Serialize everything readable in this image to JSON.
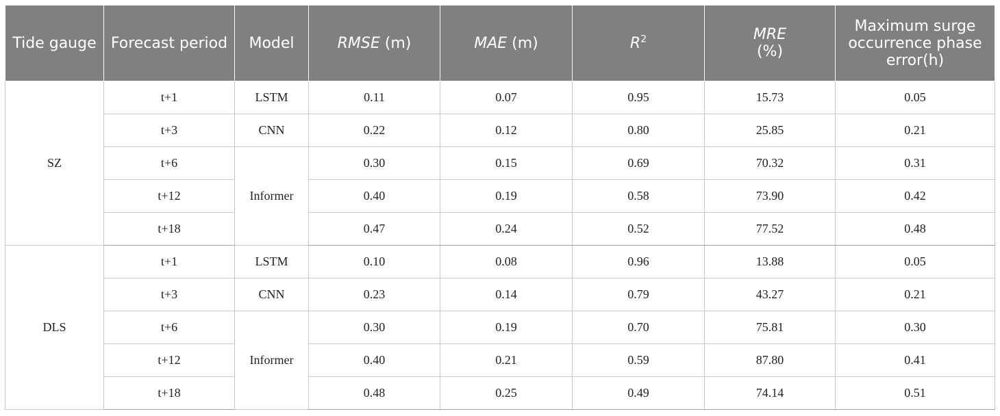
{
  "headers": {
    "tide_gauge": "Tide gauge",
    "forecast_period": "Forecast period",
    "model": "Model",
    "rmse_var": "RMSE",
    "rmse_unit": " (m)",
    "mae_var": "MAE",
    "mae_unit": " (m)",
    "r2_var": "R",
    "r2_sup": "2",
    "mre_var": "MRE",
    "mre_unit": "(%)",
    "phase_error": "Maximum surge occurrence phase error(h)"
  },
  "groups": [
    {
      "gauge": "SZ",
      "rows": [
        {
          "period": "t+1",
          "rmse": "0.11",
          "mae": "0.07",
          "r2": "0.95",
          "mre": "15.73",
          "phase": "0.05"
        },
        {
          "period": "t+3",
          "rmse": "0.22",
          "mae": "0.12",
          "r2": "0.80",
          "mre": "25.85",
          "phase": "0.21"
        },
        {
          "period": "t+6",
          "rmse": "0.30",
          "mae": "0.15",
          "r2": "0.69",
          "mre": "70.32",
          "phase": "0.31"
        },
        {
          "period": "t+12",
          "rmse": "0.40",
          "mae": "0.19",
          "r2": "0.58",
          "mre": "73.90",
          "phase": "0.42"
        },
        {
          "period": "t+18",
          "rmse": "0.47",
          "mae": "0.24",
          "r2": "0.52",
          "mre": "77.52",
          "phase": "0.48"
        }
      ],
      "models": [
        "LSTM",
        "CNN",
        "Informer"
      ]
    },
    {
      "gauge": "DLS",
      "rows": [
        {
          "period": "t+1",
          "rmse": "0.10",
          "mae": "0.08",
          "r2": "0.96",
          "mre": "13.88",
          "phase": "0.05"
        },
        {
          "period": "t+3",
          "rmse": "0.23",
          "mae": "0.14",
          "r2": "0.79",
          "mre": "43.27",
          "phase": "0.21"
        },
        {
          "period": "t+6",
          "rmse": "0.30",
          "mae": "0.19",
          "r2": "0.70",
          "mre": "75.81",
          "phase": "0.30"
        },
        {
          "period": "t+12",
          "rmse": "0.40",
          "mae": "0.21",
          "r2": "0.59",
          "mre": "87.80",
          "phase": "0.41"
        },
        {
          "period": "t+18",
          "rmse": "0.48",
          "mae": "0.25",
          "r2": "0.49",
          "mre": "74.14",
          "phase": "0.51"
        }
      ],
      "models": [
        "LSTM",
        "CNN",
        "Informer"
      ]
    }
  ]
}
